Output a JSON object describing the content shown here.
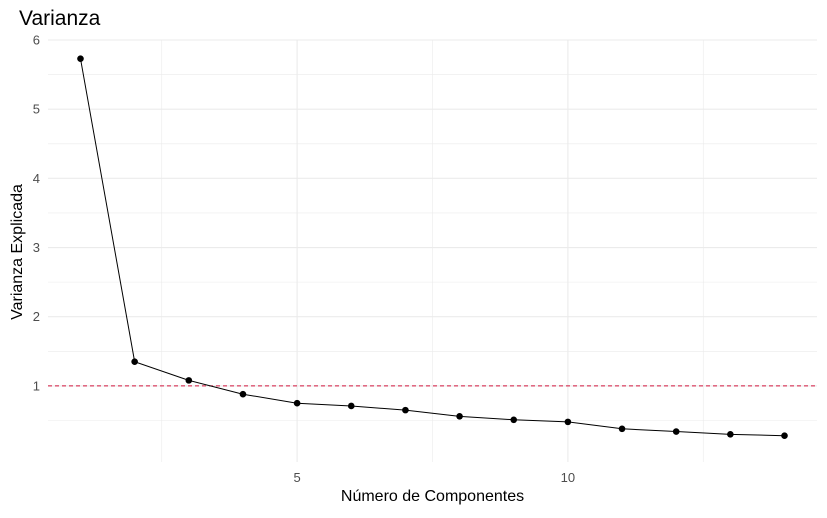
{
  "chart_data": {
    "type": "line",
    "title": "Varianza",
    "xlabel": "Número de Componentes",
    "ylabel": "Varianza Explicada",
    "x": [
      1,
      2,
      3,
      4,
      5,
      6,
      7,
      8,
      9,
      10,
      11,
      12,
      13,
      14
    ],
    "y": [
      5.73,
      1.35,
      1.08,
      0.88,
      0.75,
      0.71,
      0.65,
      0.56,
      0.51,
      0.48,
      0.38,
      0.34,
      0.3,
      0.28
    ],
    "xlim": [
      0.4,
      14.6
    ],
    "ylim": [
      -0.1,
      6.0
    ],
    "x_ticks": [
      5,
      10
    ],
    "y_ticks": [
      1,
      2,
      3,
      4,
      5,
      6
    ],
    "reference_line": {
      "y": 1,
      "style": "dashed",
      "color": "#d1143c"
    },
    "line_color": "#000000",
    "point_color": "#000000",
    "grid": true,
    "grid_color": "#ebebeb"
  }
}
